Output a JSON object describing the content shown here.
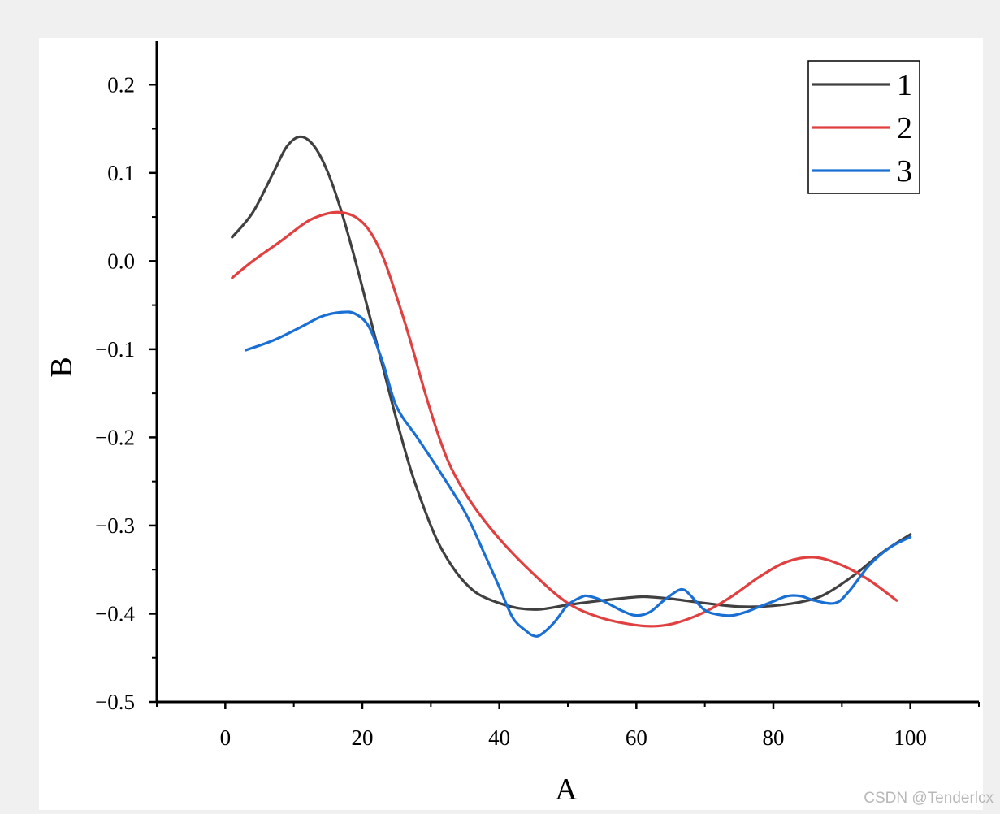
{
  "chart_data": {
    "type": "line",
    "xlabel": "A",
    "ylabel": "B",
    "xlim": [
      -10,
      110
    ],
    "ylim": [
      -0.5,
      0.25
    ],
    "xticks": [
      0,
      20,
      40,
      60,
      80,
      100
    ],
    "xtick_labels": [
      "0",
      "20",
      "40",
      "60",
      "80",
      "100"
    ],
    "yticks": [
      -0.5,
      -0.4,
      -0.3,
      -0.2,
      -0.1,
      0.0,
      0.1,
      0.2
    ],
    "ytick_labels": [
      "−0.5",
      "−0.4",
      "−0.3",
      "−0.2",
      "−0.1",
      "0.0",
      "0.1",
      "0.2"
    ],
    "grid": false,
    "legend": "top-right",
    "series": [
      {
        "name": "1",
        "color": "#404040",
        "x": [
          1,
          4,
          7,
          9,
          11,
          13,
          15,
          17,
          19,
          21,
          23,
          25,
          27,
          29,
          31,
          33,
          35,
          37,
          40,
          43,
          46,
          50,
          55,
          60,
          62,
          65,
          70,
          75,
          80,
          85,
          88,
          92,
          96,
          100
        ],
        "y": [
          0.027,
          0.055,
          0.1,
          0.13,
          0.141,
          0.13,
          0.1,
          0.055,
          0.0,
          -0.06,
          -0.12,
          -0.18,
          -0.235,
          -0.28,
          -0.318,
          -0.345,
          -0.365,
          -0.378,
          -0.388,
          -0.394,
          -0.395,
          -0.39,
          -0.385,
          -0.381,
          -0.381,
          -0.383,
          -0.388,
          -0.392,
          -0.391,
          -0.385,
          -0.376,
          -0.355,
          -0.33,
          -0.31
        ]
      },
      {
        "name": "2",
        "color": "#e04040",
        "x": [
          1,
          4,
          8,
          12,
          15,
          17,
          19,
          21,
          23,
          25,
          27,
          29,
          31,
          33,
          36,
          40,
          45,
          50,
          55,
          60,
          63,
          66,
          70,
          74,
          78,
          82,
          86,
          90,
          94,
          98
        ],
        "y": [
          -0.019,
          0.0,
          0.022,
          0.045,
          0.054,
          0.055,
          0.05,
          0.035,
          0.005,
          -0.04,
          -0.09,
          -0.145,
          -0.195,
          -0.235,
          -0.275,
          -0.315,
          -0.355,
          -0.388,
          -0.405,
          -0.413,
          -0.414,
          -0.41,
          -0.398,
          -0.38,
          -0.358,
          -0.341,
          -0.336,
          -0.345,
          -0.362,
          -0.385
        ]
      },
      {
        "name": "3",
        "color": "#1a6fd4",
        "x": [
          3,
          7,
          11,
          14,
          17,
          19,
          21,
          23,
          25,
          28,
          31,
          35,
          38,
          40,
          42,
          44,
          45,
          46,
          48,
          50,
          52,
          53,
          55,
          58,
          60,
          62,
          64,
          66,
          67,
          68,
          70,
          72,
          74,
          76,
          78,
          80,
          82,
          84,
          86,
          89,
          91,
          94,
          97,
          100
        ],
        "y": [
          -0.101,
          -0.09,
          -0.075,
          -0.063,
          -0.058,
          -0.06,
          -0.075,
          -0.115,
          -0.165,
          -0.2,
          -0.235,
          -0.285,
          -0.335,
          -0.37,
          -0.405,
          -0.42,
          -0.425,
          -0.424,
          -0.41,
          -0.39,
          -0.381,
          -0.38,
          -0.385,
          -0.397,
          -0.402,
          -0.398,
          -0.385,
          -0.374,
          -0.373,
          -0.38,
          -0.396,
          -0.401,
          -0.402,
          -0.398,
          -0.392,
          -0.386,
          -0.38,
          -0.38,
          -0.385,
          -0.388,
          -0.375,
          -0.345,
          -0.325,
          -0.313
        ]
      }
    ]
  },
  "watermark": "CSDN @Tenderlcx"
}
